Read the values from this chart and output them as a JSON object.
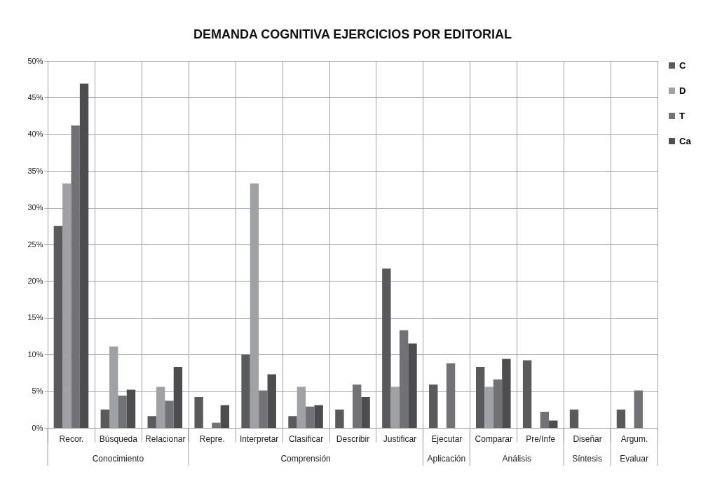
{
  "chart_data": {
    "type": "bar",
    "title": "DEMANDA COGNITIVA EJERCICIOS POR EDITORIAL",
    "categories": [
      "Recor.",
      "Búsqueda",
      "Relacionar",
      "Repre.",
      "Interpretar",
      "Clasificar",
      "Describir",
      "Justificar",
      "Ejecutar",
      "Comparar",
      "Pre/Infe",
      "Diseñar",
      "Argum."
    ],
    "series": [
      {
        "name": "C",
        "color": "#5a5a5c",
        "values": [
          27.5,
          2.5,
          1.6,
          4.2,
          10,
          1.6,
          2.5,
          21.7,
          5.9,
          8.3,
          9.2,
          2.5,
          2.5
        ]
      },
      {
        "name": "D",
        "color": "#a0a1a5",
        "values": [
          33.3,
          11.1,
          5.6,
          0,
          33.3,
          5.6,
          0,
          5.6,
          0,
          5.6,
          0,
          0,
          0
        ]
      },
      {
        "name": "T",
        "color": "#727276",
        "values": [
          41.2,
          4.4,
          3.7,
          0.7,
          5.1,
          2.9,
          5.9,
          13.3,
          8.8,
          6.6,
          2.2,
          0,
          5.1
        ]
      },
      {
        "name": "Ca",
        "color": "#4d4d4f",
        "values": [
          46.9,
          5.2,
          8.3,
          3.1,
          7.3,
          3.1,
          4.2,
          11.5,
          0,
          9.4,
          1.0,
          0,
          0
        ]
      }
    ],
    "annotations": [
      "Conocimiento",
      "Comprensión",
      "Aplicación",
      "Análisis",
      "Síntesis",
      "Evaluar"
    ],
    "ylim": [
      0,
      50
    ],
    "yticks": [
      {
        "value": 0,
        "label": "0%"
      },
      {
        "value": 5,
        "label": "5%"
      },
      {
        "value": 10,
        "label": "10%"
      },
      {
        "value": 15,
        "label": "15%"
      },
      {
        "value": 20,
        "label": "20%"
      },
      {
        "value": 25,
        "label": "25%"
      },
      {
        "value": 30,
        "label": "30%"
      },
      {
        "value": 35,
        "label": "35%"
      },
      {
        "value": 40,
        "label": "40%"
      },
      {
        "value": 45,
        "label": "45%"
      },
      {
        "value": 50,
        "label": "50%"
      }
    ],
    "grid": true,
    "legend": "right"
  }
}
